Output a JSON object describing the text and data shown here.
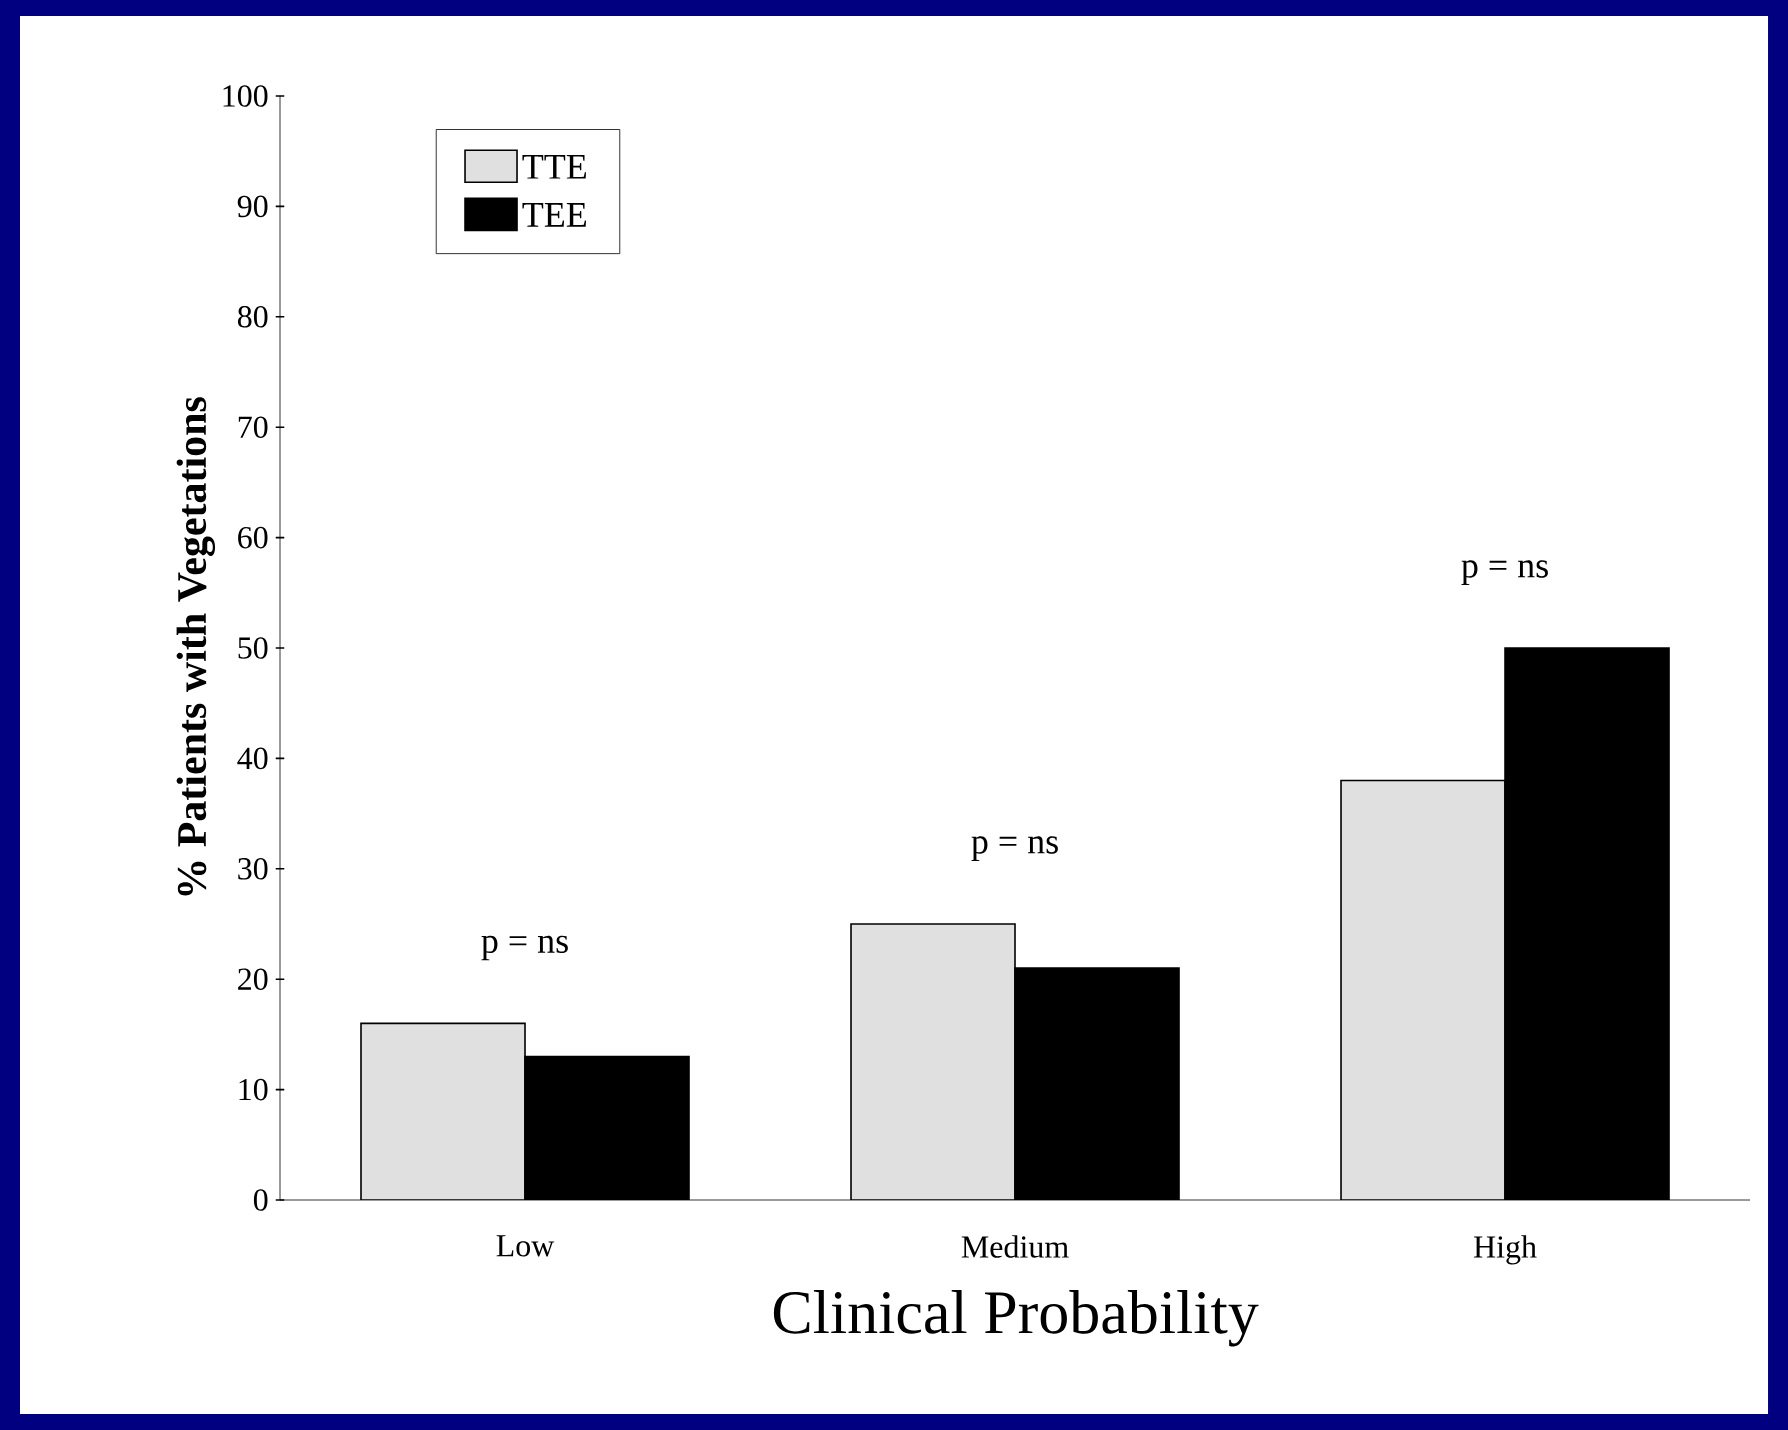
{
  "chart_data": {
    "type": "bar",
    "xlabel": "Clinical Probability",
    "ylabel": "% Patients with Vegetations",
    "categories": [
      "Low",
      "Medium",
      "High"
    ],
    "series": [
      {
        "name": "TTE",
        "color": "#e0e0e0",
        "values": [
          16,
          25,
          38
        ]
      },
      {
        "name": "TEE",
        "color": "#000000",
        "values": [
          13,
          21,
          50
        ]
      }
    ],
    "ylim": [
      0,
      100
    ],
    "yticks": [
      0,
      10,
      20,
      30,
      40,
      50,
      60,
      70,
      80,
      90,
      100
    ],
    "legend": "top left",
    "grid": false,
    "annotations": [
      "p = ns",
      "p = ns",
      "p = ns"
    ]
  }
}
